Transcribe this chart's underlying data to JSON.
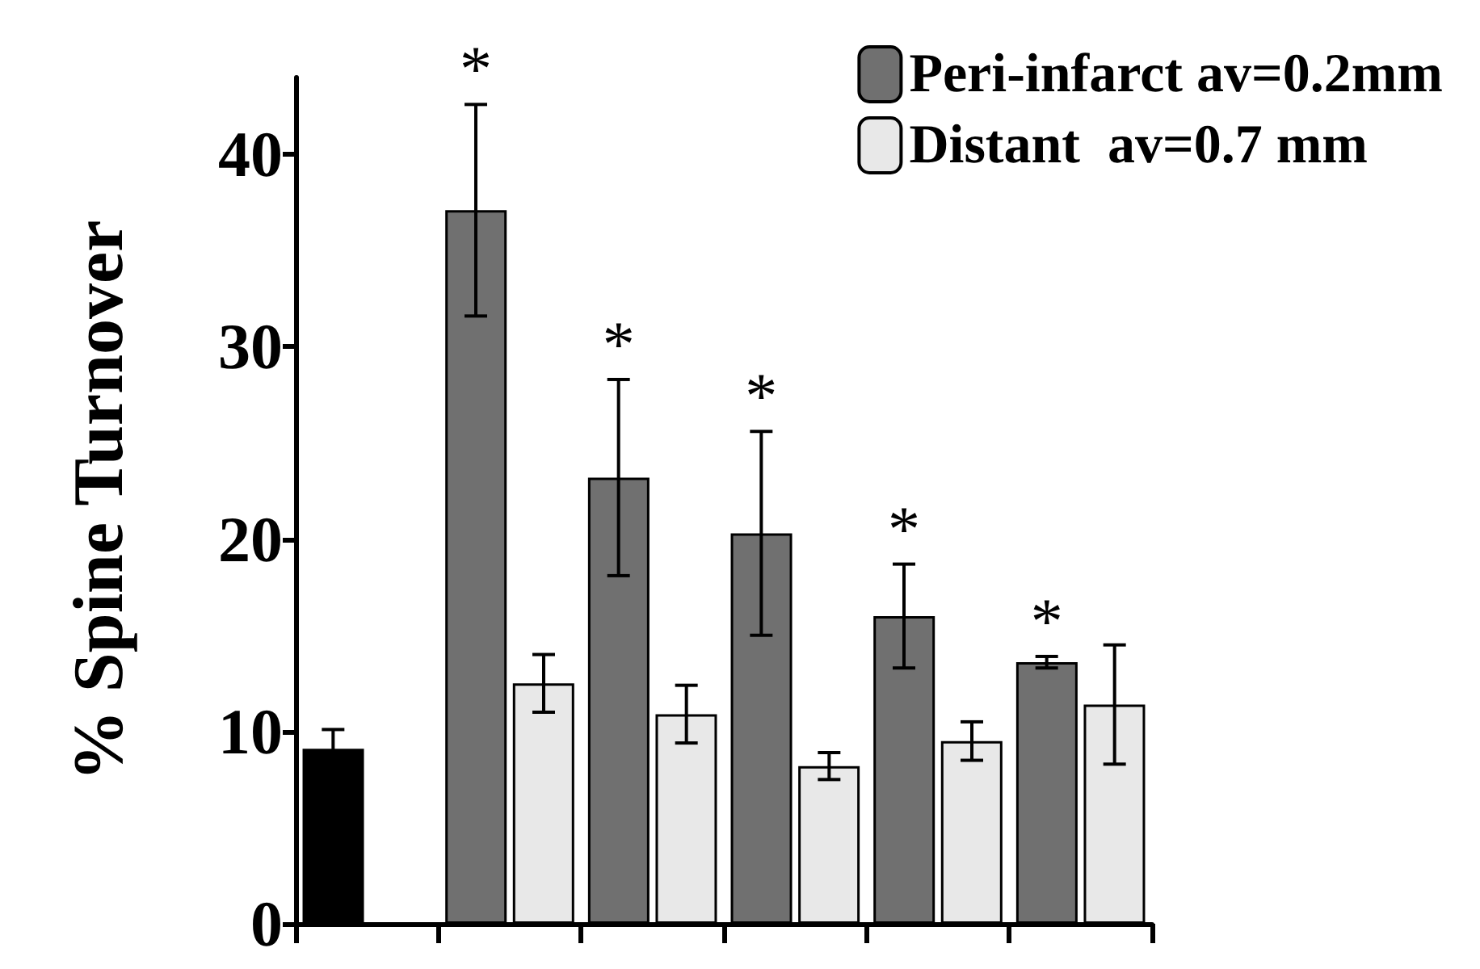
{
  "chart_data": {
    "type": "bar",
    "ylabel": "% Spine Turnover",
    "categories": [
      null,
      null,
      null,
      null,
      null,
      null
    ],
    "series": [
      {
        "color": "#000000",
        "values": [
          9.1,
          null,
          null,
          null,
          null,
          null
        ],
        "errors": [
          1.0,
          null,
          null,
          null,
          null,
          null
        ]
      },
      {
        "name": "Peri-infarct av=0.2mm",
        "color": "#707070",
        "values": [
          null,
          37.1,
          23.2,
          20.3,
          16.0,
          13.6
        ],
        "errors": [
          null,
          5.5,
          5.1,
          5.3,
          2.7,
          0.3
        ],
        "value_labels": [
          null,
          "*",
          "*",
          "*",
          "*",
          "*"
        ]
      },
      {
        "name": "Distant  av=0.7 mm",
        "color": "#e8e8e8",
        "values": [
          null,
          12.5,
          10.9,
          8.2,
          9.5,
          11.4
        ],
        "errors": [
          null,
          1.5,
          1.5,
          0.7,
          1.0,
          3.1
        ]
      }
    ],
    "ylim": [
      0,
      44
    ],
    "yticks": [
      0,
      10,
      20,
      30,
      40
    ],
    "grid": false,
    "legend": "top right"
  }
}
